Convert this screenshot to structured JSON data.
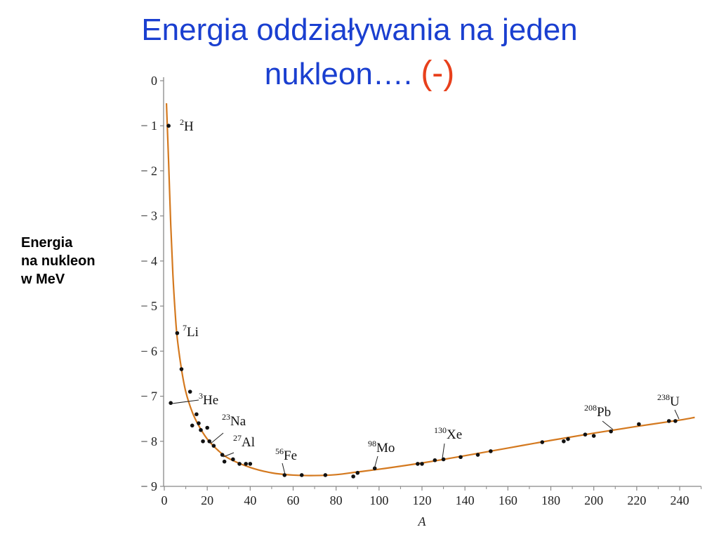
{
  "title": {
    "line1": "Energia oddziaływania na jeden",
    "line2": "nukleon….",
    "accent": "(-)"
  },
  "y_axis_label": {
    "line1": "Energia",
    "line2": "na nukleon",
    "line3": "w MeV"
  },
  "colors": {
    "title": "#1a3fd0",
    "accent": "#e8401c",
    "curve": "#d4791f",
    "points": "#111111",
    "axis": "#888888"
  },
  "chart_data": {
    "type": "scatter",
    "xlabel": "A",
    "xlim": [
      0,
      250
    ],
    "ylim": [
      -9,
      0
    ],
    "x_ticks": [
      0,
      20,
      40,
      60,
      80,
      100,
      120,
      140,
      160,
      180,
      200,
      220,
      240
    ],
    "y_ticks": [
      0,
      -1,
      -2,
      -3,
      -4,
      -5,
      -6,
      -7,
      -8,
      -9
    ],
    "y_tick_labels": [
      "0",
      "− 1",
      "− 2",
      "− 3",
      "− 4",
      "− 5",
      "− 6",
      "− 7",
      "− 8",
      "− 9"
    ],
    "points": [
      {
        "x": 2,
        "y": -1.0
      },
      {
        "x": 3,
        "y": -7.15
      },
      {
        "x": 6,
        "y": -5.6
      },
      {
        "x": 8,
        "y": -6.4
      },
      {
        "x": 12,
        "y": -6.9
      },
      {
        "x": 13,
        "y": -7.65
      },
      {
        "x": 15,
        "y": -7.4
      },
      {
        "x": 16,
        "y": -7.6
      },
      {
        "x": 17,
        "y": -7.75
      },
      {
        "x": 18,
        "y": -8.0
      },
      {
        "x": 20,
        "y": -7.7
      },
      {
        "x": 21,
        "y": -8.0
      },
      {
        "x": 23,
        "y": -8.1
      },
      {
        "x": 27,
        "y": -8.3
      },
      {
        "x": 28,
        "y": -8.45
      },
      {
        "x": 32,
        "y": -8.4
      },
      {
        "x": 35,
        "y": -8.5
      },
      {
        "x": 38,
        "y": -8.5
      },
      {
        "x": 40,
        "y": -8.5
      },
      {
        "x": 56,
        "y": -8.75
      },
      {
        "x": 64,
        "y": -8.75
      },
      {
        "x": 75,
        "y": -8.75
      },
      {
        "x": 88,
        "y": -8.78
      },
      {
        "x": 90,
        "y": -8.7
      },
      {
        "x": 98,
        "y": -8.6
      },
      {
        "x": 118,
        "y": -8.5
      },
      {
        "x": 120,
        "y": -8.5
      },
      {
        "x": 126,
        "y": -8.42
      },
      {
        "x": 130,
        "y": -8.4
      },
      {
        "x": 138,
        "y": -8.35
      },
      {
        "x": 146,
        "y": -8.3
      },
      {
        "x": 152,
        "y": -8.22
      },
      {
        "x": 176,
        "y": -8.02
      },
      {
        "x": 186,
        "y": -8.0
      },
      {
        "x": 188,
        "y": -7.95
      },
      {
        "x": 196,
        "y": -7.85
      },
      {
        "x": 200,
        "y": -7.88
      },
      {
        "x": 208,
        "y": -7.78
      },
      {
        "x": 221,
        "y": -7.62
      },
      {
        "x": 235,
        "y": -7.55
      },
      {
        "x": 238,
        "y": -7.55
      }
    ],
    "curve": [
      [
        1,
        -0.5
      ],
      [
        2,
        -1.8
      ],
      [
        3,
        -3.2
      ],
      [
        4,
        -4.3
      ],
      [
        5,
        -5.1
      ],
      [
        6,
        -5.7
      ],
      [
        8,
        -6.4
      ],
      [
        10,
        -6.9
      ],
      [
        13,
        -7.35
      ],
      [
        16,
        -7.65
      ],
      [
        20,
        -7.95
      ],
      [
        25,
        -8.2
      ],
      [
        30,
        -8.38
      ],
      [
        40,
        -8.58
      ],
      [
        50,
        -8.7
      ],
      [
        60,
        -8.75
      ],
      [
        70,
        -8.76
      ],
      [
        80,
        -8.74
      ],
      [
        90,
        -8.68
      ],
      [
        100,
        -8.62
      ],
      [
        120,
        -8.48
      ],
      [
        140,
        -8.32
      ],
      [
        160,
        -8.15
      ],
      [
        180,
        -7.98
      ],
      [
        200,
        -7.82
      ],
      [
        220,
        -7.67
      ],
      [
        240,
        -7.53
      ],
      [
        247,
        -7.47
      ]
    ],
    "annotations": [
      {
        "sup": "2",
        "text": "H"
      },
      {
        "sup": "7",
        "text": "Li"
      },
      {
        "sup": "3",
        "text": "He"
      },
      {
        "sup": "23",
        "text": "Na"
      },
      {
        "sup": "27",
        "text": "Al"
      },
      {
        "sup": "56",
        "text": "Fe"
      },
      {
        "sup": "98",
        "text": "Mo"
      },
      {
        "sup": "130",
        "text": "Xe"
      },
      {
        "sup": "208",
        "text": "Pb"
      },
      {
        "sup": "238",
        "text": "U"
      }
    ]
  }
}
